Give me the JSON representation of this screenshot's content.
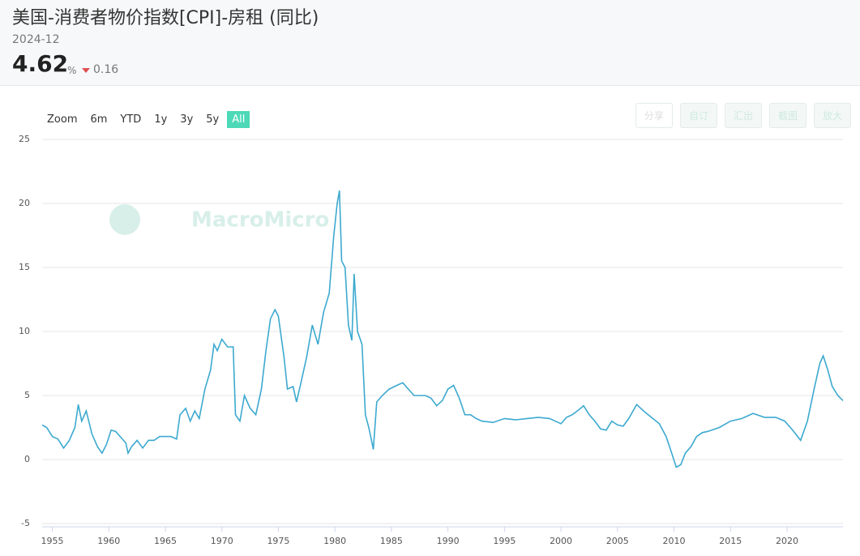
{
  "header": {
    "title": "美国-消费者物价指数[CPI]-房租 (同比)",
    "date": "2024-12",
    "value": 4.62,
    "unit": "%",
    "change": 0.16
  },
  "toolbar": {
    "zoom_label": "Zoom",
    "ranges": [
      "6m",
      "YTD",
      "1y",
      "3y",
      "5y",
      "All"
    ],
    "actions": [
      "分享",
      "自订",
      "汇出",
      "截图",
      "放大"
    ]
  },
  "watermark": "MacroMicro",
  "chart_data": {
    "type": "line",
    "x": [
      1954.1,
      1954.5,
      1955,
      1955.5,
      1956,
      1956.5,
      1957,
      1957.3,
      1957.6,
      1958,
      1958.5,
      1959,
      1959.4,
      1959.8,
      1960.2,
      1960.6,
      1961,
      1961.5,
      1961.7,
      1962,
      1962.5,
      1963,
      1963.5,
      1964,
      1964.5,
      1965,
      1965.5,
      1966,
      1966.3,
      1966.8,
      1967.2,
      1967.6,
      1968,
      1968.5,
      1969,
      1969.3,
      1969.6,
      1970,
      1970.5,
      1971,
      1971.2,
      1971.6,
      1972,
      1972.5,
      1973,
      1973.5,
      1973.9,
      1974.3,
      1974.7,
      1975,
      1975.5,
      1975.8,
      1976.3,
      1976.6,
      1977,
      1977.5,
      1978,
      1978.5,
      1979,
      1979.5,
      1979.9,
      1980.2,
      1980.4,
      1980.6,
      1980.9,
      1981.2,
      1981.5,
      1981.7,
      1982,
      1982.4,
      1982.7,
      1983,
      1983.4,
      1983.7,
      1984.2,
      1984.8,
      1985.5,
      1986,
      1986.5,
      1987,
      1987.5,
      1988,
      1988.5,
      1989,
      1989.5,
      1990,
      1990.5,
      1991,
      1991.5,
      1992,
      1992.5,
      1993,
      1994,
      1995,
      1996,
      1997,
      1998,
      1999,
      2000,
      2000.5,
      2001,
      2001.6,
      2002,
      2002.5,
      2003,
      2003.5,
      2004,
      2004.5,
      2005,
      2005.5,
      2006,
      2006.7,
      2007.3,
      2008,
      2008.7,
      2009.3,
      2009.8,
      2010.2,
      2010.6,
      2011,
      2011.5,
      2012,
      2012.5,
      2013,
      2014,
      2015,
      2016,
      2017,
      2018,
      2019,
      2019.8,
      2020.5,
      2021.2,
      2021.8,
      2022.4,
      2022.9,
      2023.2,
      2023.6,
      2024,
      2024.5,
      2024.95
    ],
    "series": [
      {
        "color": "#3ca9cf",
        "values": [
          2.7,
          2.5,
          1.8,
          1.6,
          0.9,
          1.5,
          2.5,
          4.3,
          3.0,
          3.8,
          2.0,
          1.0,
          0.5,
          1.2,
          2.3,
          2.2,
          1.8,
          1.3,
          0.5,
          1.0,
          1.5,
          0.9,
          1.5,
          1.5,
          1.8,
          1.8,
          1.8,
          1.6,
          3.5,
          4.0,
          3.0,
          3.8,
          3.2,
          5.5,
          7.0,
          9.0,
          8.5,
          9.4,
          8.8,
          8.8,
          3.5,
          3.0,
          5.0,
          4.0,
          3.5,
          5.5,
          8.5,
          11.0,
          11.7,
          11.2,
          8.0,
          5.5,
          5.7,
          4.5,
          6.0,
          8.0,
          10.5,
          9.0,
          11.5,
          13.0,
          17.5,
          20.0,
          21.0,
          15.5,
          15.0,
          10.5,
          9.3,
          14.5,
          10.0,
          9.0,
          3.5,
          2.5,
          0.8,
          4.5,
          5.0,
          5.5,
          5.8,
          6.0,
          5.5,
          5.0,
          5.0,
          5.0,
          4.8,
          4.2,
          4.6,
          5.5,
          5.8,
          4.8,
          3.5,
          3.5,
          3.2,
          3.0,
          2.9,
          3.2,
          3.1,
          3.2,
          3.3,
          3.2,
          2.8,
          3.3,
          3.5,
          3.9,
          4.2,
          3.5,
          3.0,
          2.4,
          2.3,
          3.0,
          2.7,
          2.6,
          3.2,
          4.3,
          3.8,
          3.3,
          2.8,
          1.8,
          0.5,
          -0.6,
          -0.4,
          0.5,
          1.0,
          1.8,
          2.1,
          2.2,
          2.5,
          3.0,
          3.2,
          3.6,
          3.3,
          3.3,
          3.0,
          2.3,
          1.5,
          3.0,
          5.5,
          7.5,
          8.1,
          7.0,
          5.7,
          5.0,
          4.6
        ]
      }
    ],
    "xlim": [
      1954.1,
      2024.95
    ],
    "xticks": [
      1955,
      1960,
      1965,
      1970,
      1975,
      1980,
      1985,
      1990,
      1995,
      2000,
      2005,
      2010,
      2015,
      2020
    ],
    "ylim": [
      -5,
      25
    ],
    "yticks": [
      -5,
      0,
      5,
      10,
      15,
      20,
      25
    ],
    "grid": true
  }
}
